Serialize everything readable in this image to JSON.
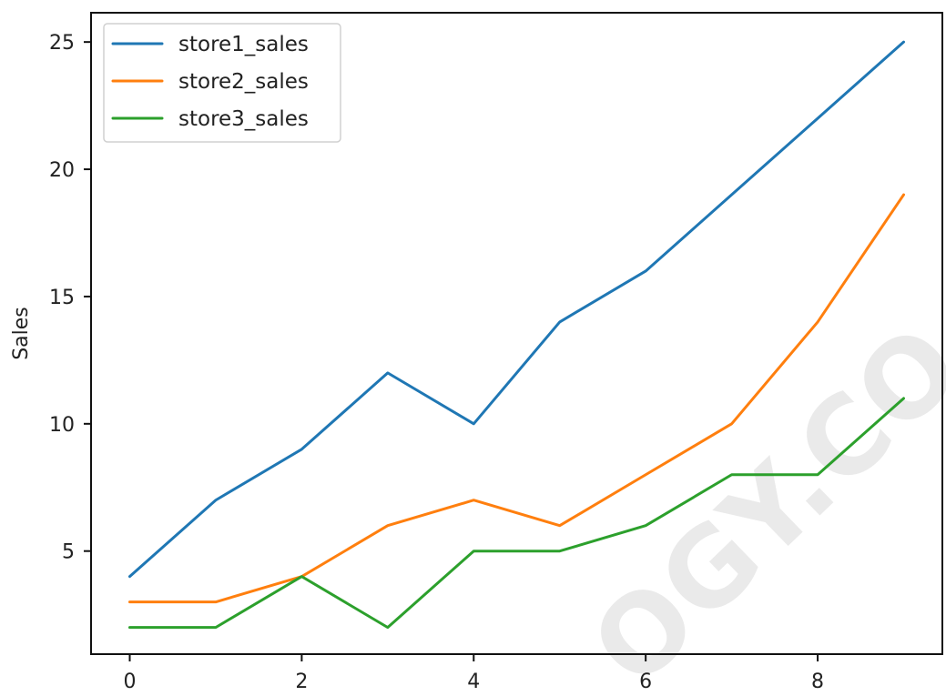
{
  "chart_data": {
    "type": "line",
    "ylabel": "Sales",
    "xlabel": "",
    "title": "",
    "x": [
      0,
      1,
      2,
      3,
      4,
      5,
      6,
      7,
      8,
      9
    ],
    "series": [
      {
        "name": "store1_sales",
        "color": "#1f77b4",
        "values": [
          4,
          7,
          9,
          12,
          10,
          14,
          16,
          19,
          22,
          25
        ]
      },
      {
        "name": "store2_sales",
        "color": "#ff7f0e",
        "values": [
          3,
          3,
          4,
          6,
          7,
          6,
          8,
          10,
          14,
          19
        ]
      },
      {
        "name": "store3_sales",
        "color": "#2ca02c",
        "values": [
          2,
          2,
          4,
          2,
          5,
          5,
          6,
          8,
          8,
          11
        ]
      }
    ],
    "xticks": [
      "0",
      "2",
      "4",
      "6",
      "8"
    ],
    "yticks": [
      "5",
      "10",
      "15",
      "20",
      "25"
    ],
    "xlim": [
      -0.45,
      9.45
    ],
    "ylim": [
      0.95,
      26.15
    ],
    "grid": false,
    "legend": "top-left"
  },
  "watermark": {
    "text": "OGY.CO"
  }
}
